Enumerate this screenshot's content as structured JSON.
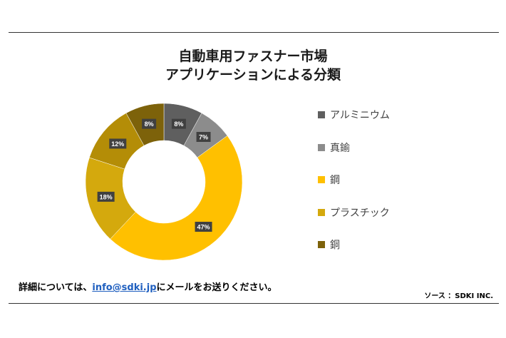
{
  "header": {
    "title_line1": "自動車用ファスナー市場",
    "title_line2": "アプリケーションによる分類"
  },
  "colors": {
    "rule": "#333333",
    "link": "#1f5fbf"
  },
  "chart_data": {
    "type": "pie",
    "subtype": "donut",
    "title": "自動車用ファスナー市場 アプリケーションによる分類",
    "legend_position": "right",
    "slices": [
      {
        "name": "アルミニウム",
        "value": 8,
        "label": "8%",
        "color": "#5f5f5f"
      },
      {
        "name": "真鍮",
        "value": 7,
        "label": "7%",
        "color": "#8c8c8c"
      },
      {
        "name": "鋼",
        "value": 47,
        "label": "47%",
        "color": "#ffc000"
      },
      {
        "name": "プラスチック",
        "value": 18,
        "label": "18%",
        "color": "#d4a90d"
      },
      {
        "name": "",
        "value": 12,
        "label": "12%",
        "color": "#b48d07"
      },
      {
        "name": "銅",
        "value": 8,
        "label": "8%",
        "color": "#7d620a"
      }
    ]
  },
  "legend": [
    {
      "label": "アルミニウム",
      "color": "#5f5f5f"
    },
    {
      "label": "真鍮",
      "color": "#8c8c8c"
    },
    {
      "label": "鋼",
      "color": "#ffc000"
    },
    {
      "label": "プラスチック",
      "color": "#d4a90d"
    },
    {
      "label": "銅",
      "color": "#7d620a"
    }
  ],
  "footer": {
    "note_prefix": "詳細については、",
    "email": "info@sdki.jp",
    "note_suffix": "にメールをお送りください。",
    "source": "ソース ：SDKI INC."
  }
}
